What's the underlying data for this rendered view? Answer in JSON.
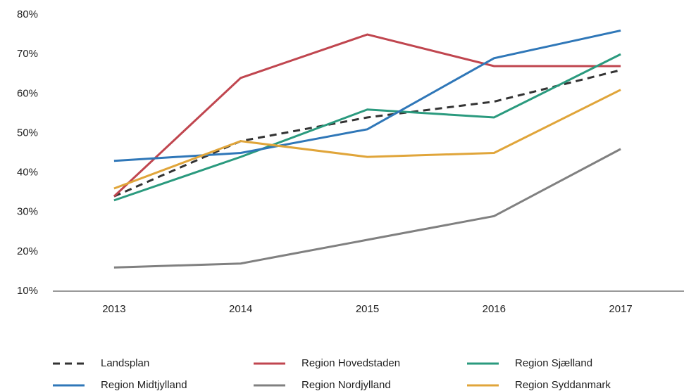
{
  "chart_data": {
    "type": "line",
    "categories": [
      "2013",
      "2014",
      "2015",
      "2016",
      "2017"
    ],
    "series": [
      {
        "name": "Landsplan",
        "color": "#333333",
        "linestyle": "dashed",
        "values": [
          34,
          48,
          54,
          58,
          66
        ]
      },
      {
        "name": "Region Hovedstaden",
        "color": "#c0464f",
        "linestyle": "solid",
        "values": [
          34,
          64,
          75,
          67,
          67
        ]
      },
      {
        "name": "Region Sjælland",
        "color": "#2a9a7e",
        "linestyle": "solid",
        "values": [
          33,
          44,
          56,
          54,
          70
        ]
      },
      {
        "name": "Region Midtjylland",
        "color": "#2f77b8",
        "linestyle": "solid",
        "values": [
          43,
          45,
          51,
          69,
          76
        ]
      },
      {
        "name": "Region Nordjylland",
        "color": "#808080",
        "linestyle": "solid",
        "values": [
          16,
          17,
          23,
          29,
          46
        ]
      },
      {
        "name": "Region Syddanmark",
        "color": "#e0a53a",
        "linestyle": "solid",
        "values": [
          36,
          48,
          44,
          45,
          61
        ]
      }
    ],
    "ylim": [
      10,
      80
    ],
    "yticks": [
      {
        "value": 10,
        "label": "10%"
      },
      {
        "value": 20,
        "label": "20%"
      },
      {
        "value": 30,
        "label": "30%"
      },
      {
        "value": 40,
        "label": "40%"
      },
      {
        "value": 50,
        "label": "50%"
      },
      {
        "value": 60,
        "label": "60%"
      },
      {
        "value": 70,
        "label": "70%"
      },
      {
        "value": 80,
        "label": "80%"
      }
    ],
    "grid": false,
    "legend": "bottom"
  }
}
